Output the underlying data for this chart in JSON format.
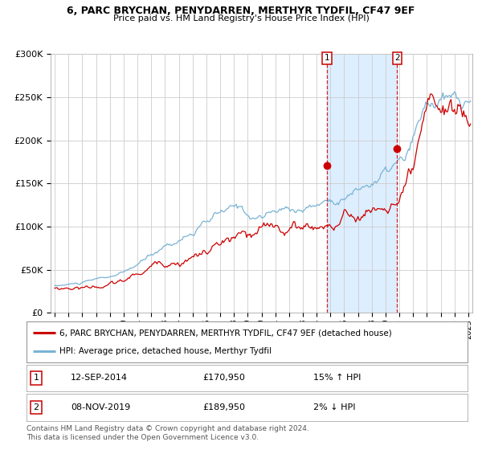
{
  "title1": "6, PARC BRYCHAN, PENYDARREN, MERTHYR TYDFIL, CF47 9EF",
  "title2": "Price paid vs. HM Land Registry's House Price Index (HPI)",
  "bg_color": "#ffffff",
  "plot_bg_color": "#ffffff",
  "grid_color": "#cccccc",
  "hpi_color": "#7ab3d4",
  "price_color": "#cc0000",
  "span_color": "#ddeeff",
  "marker1_x": 2014.75,
  "marker2_x": 2019.85,
  "purchase1": {
    "date": "12-SEP-2014",
    "price": 170950,
    "hpi_rel": "15% ↑ HPI"
  },
  "purchase2": {
    "date": "08-NOV-2019",
    "price": 189950,
    "hpi_rel": "2% ↓ HPI"
  },
  "legend1": "6, PARC BRYCHAN, PENYDARREN, MERTHYR TYDFIL, CF47 9EF (detached house)",
  "legend2": "HPI: Average price, detached house, Merthyr Tydfil",
  "footer": "Contains HM Land Registry data © Crown copyright and database right 2024.\nThis data is licensed under the Open Government Licence v3.0.",
  "ylim": [
    0,
    300000
  ],
  "yticks": [
    0,
    50000,
    100000,
    150000,
    200000,
    250000,
    300000
  ],
  "ytick_labels": [
    "£0",
    "£50K",
    "£100K",
    "£150K",
    "£200K",
    "£250K",
    "£300K"
  ],
  "xlim_start": 1994.7,
  "xlim_end": 2025.3
}
